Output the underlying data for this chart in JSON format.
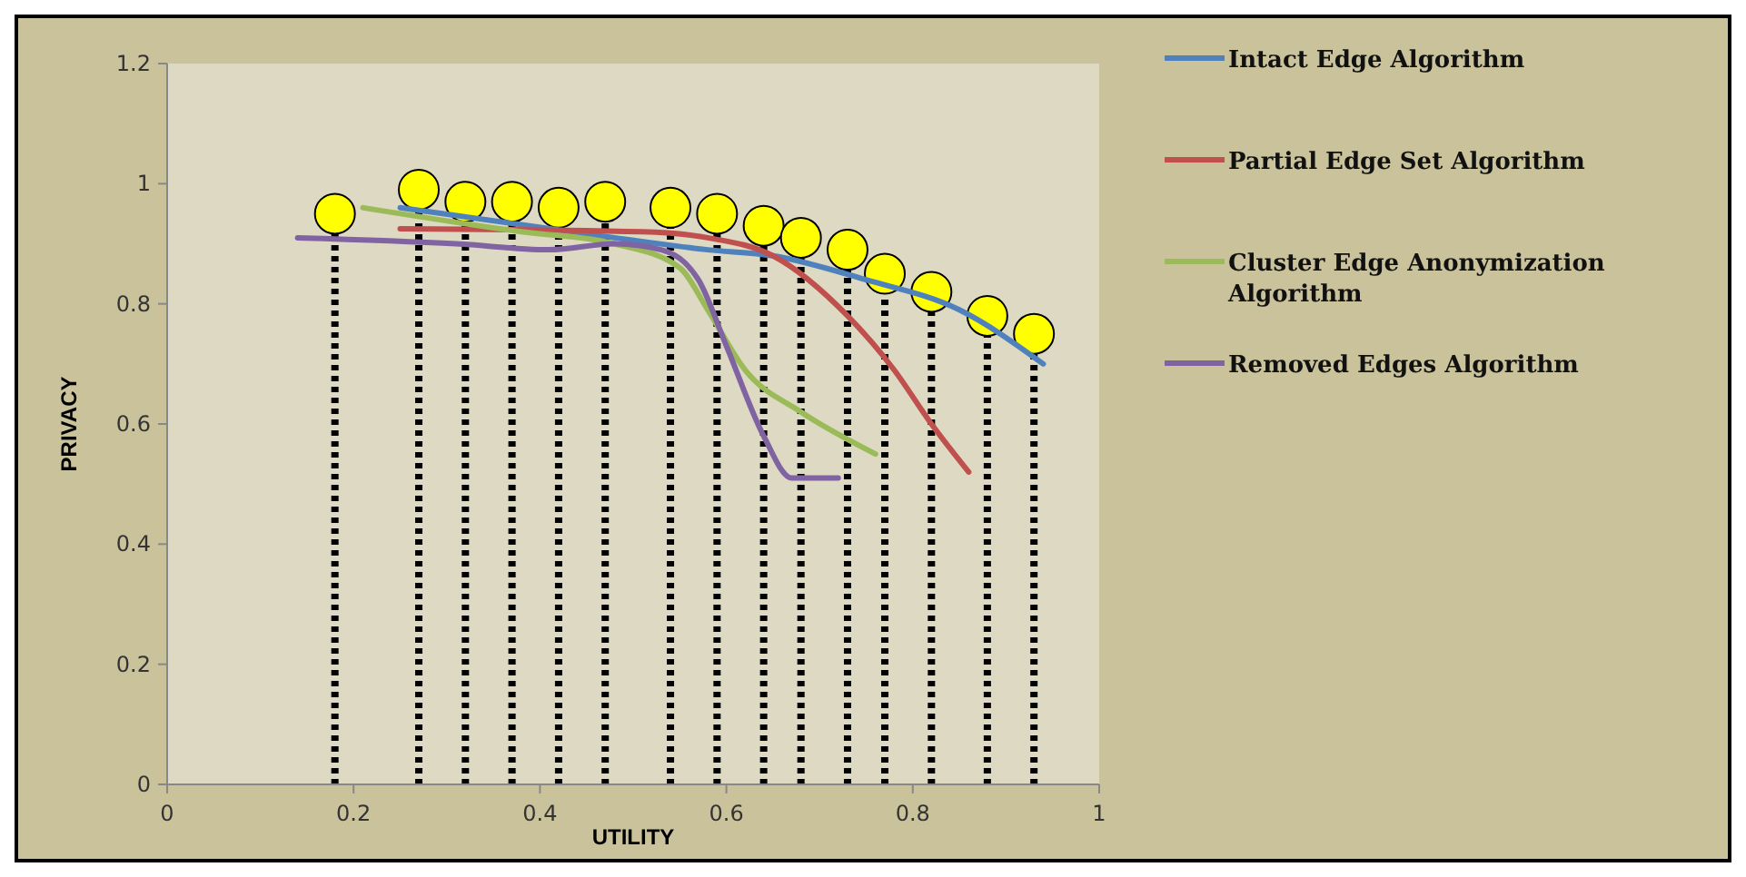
{
  "chart_data": {
    "type": "line",
    "xlabel": "UTILITY",
    "ylabel": "PRIVACY",
    "xlim": [
      0,
      1
    ],
    "ylim": [
      0,
      1.2
    ],
    "xticks": [
      0,
      0.2,
      0.4,
      0.6,
      0.8,
      1
    ],
    "yticks": [
      0,
      0.2,
      0.4,
      0.6,
      0.8,
      1,
      1.2
    ],
    "grid": false,
    "legend": "right",
    "marker": "none",
    "line_style": "solid",
    "series": [
      {
        "name": "Intact Edge Algorithm",
        "color": "#4f81bd",
        "x": [
          0.25,
          0.48,
          0.58,
          0.65,
          0.75,
          0.85,
          0.94
        ],
        "values": [
          0.96,
          0.91,
          0.89,
          0.88,
          0.84,
          0.79,
          0.7
        ]
      },
      {
        "name": "Partial Edge Set Algorithm",
        "color": "#c0504d",
        "x": [
          0.25,
          0.51,
          0.58,
          0.65,
          0.73,
          0.78,
          0.82,
          0.86
        ],
        "values": [
          0.925,
          0.92,
          0.91,
          0.88,
          0.78,
          0.69,
          0.6,
          0.52
        ]
      },
      {
        "name": "Cluster Edge Anonymization Algorithm",
        "color": "#9bbb59",
        "x": [
          0.21,
          0.38,
          0.48,
          0.55,
          0.58,
          0.62,
          0.68,
          0.76
        ],
        "values": [
          0.96,
          0.92,
          0.9,
          0.86,
          0.79,
          0.69,
          0.62,
          0.55
        ]
      },
      {
        "name": "Removed Edges Algorithm",
        "color": "#8064a2",
        "x": [
          0.14,
          0.31,
          0.41,
          0.48,
          0.53,
          0.57,
          0.6,
          0.64,
          0.67,
          0.72
        ],
        "values": [
          0.91,
          0.9,
          0.89,
          0.9,
          0.89,
          0.84,
          0.73,
          0.58,
          0.51,
          0.51
        ]
      },
      {
        "type": "lollipop",
        "color": "#ffff00",
        "marker": "circle",
        "line_style": "dotted",
        "x": [
          0.18,
          0.27,
          0.32,
          0.37,
          0.42,
          0.47,
          0.54,
          0.59,
          0.64,
          0.68,
          0.73,
          0.77,
          0.82,
          0.88,
          0.93
        ],
        "values": [
          0.95,
          0.99,
          0.97,
          0.97,
          0.96,
          0.97,
          0.96,
          0.95,
          0.93,
          0.91,
          0.89,
          0.85,
          0.82,
          0.78,
          0.75
        ]
      }
    ]
  }
}
